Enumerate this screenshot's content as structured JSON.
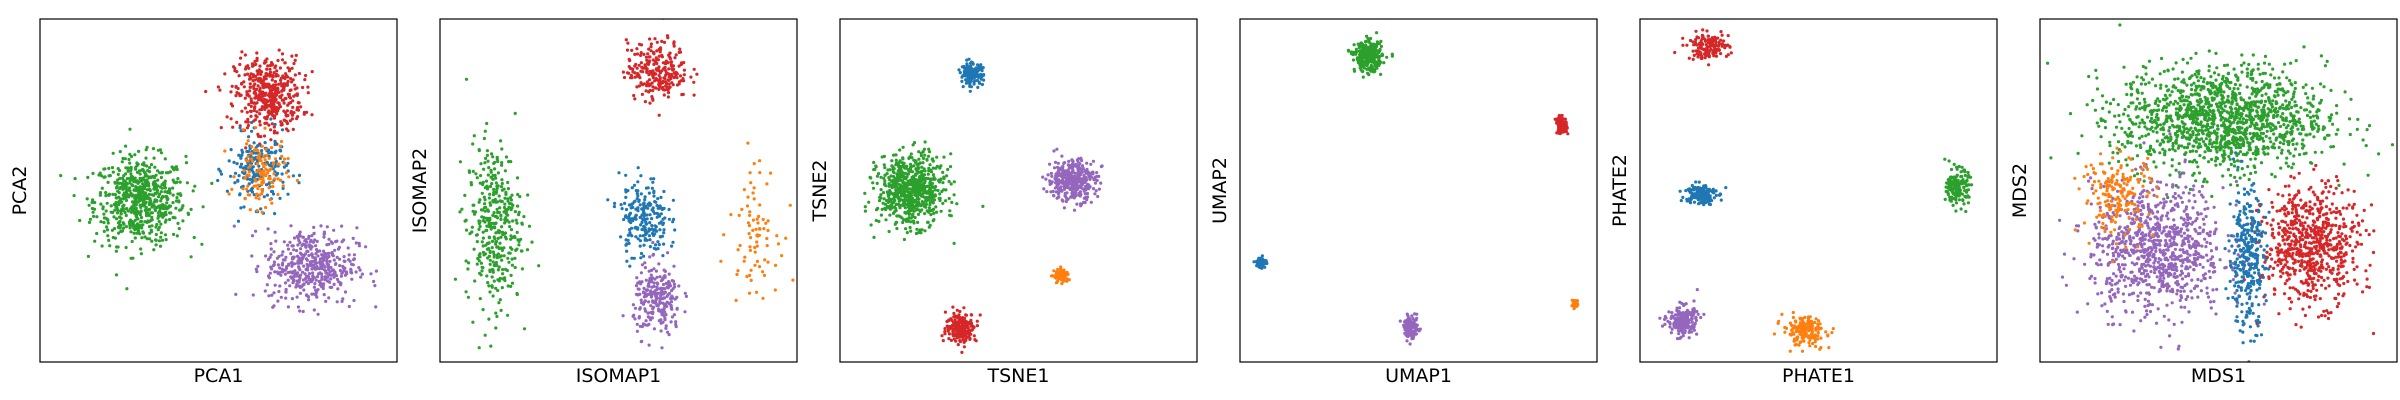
{
  "chart_data": [
    {
      "type": "scatter",
      "xlabel": "PCA1",
      "ylabel": "PCA2",
      "xlim": [
        0,
        1
      ],
      "ylim": [
        0,
        1
      ],
      "xticks": [],
      "yticks": [],
      "grid": false,
      "clusters": [
        {
          "color": "#2ca02c",
          "center": [
            0.28,
            0.47
          ],
          "spread": [
            0.075,
            0.075
          ],
          "n": 650
        },
        {
          "color": "#d62728",
          "center": [
            0.64,
            0.78
          ],
          "spread": [
            0.055,
            0.065
          ],
          "n": 450
        },
        {
          "color": "#1f77b4",
          "center": [
            0.61,
            0.56
          ],
          "spread": [
            0.05,
            0.06
          ],
          "n": 200
        },
        {
          "color": "#ff7f0e",
          "center": [
            0.62,
            0.55
          ],
          "spread": [
            0.04,
            0.06
          ],
          "n": 120
        },
        {
          "color": "#9467bd",
          "center": [
            0.76,
            0.28
          ],
          "spread": [
            0.075,
            0.065
          ],
          "n": 450
        }
      ]
    },
    {
      "type": "scatter",
      "xlabel": "ISOMAP1",
      "ylabel": "ISOMAP2",
      "xlim": [
        0,
        1
      ],
      "ylim": [
        0,
        1
      ],
      "xticks": [],
      "yticks": [],
      "grid": false,
      "clusters": [
        {
          "color": "#2ca02c",
          "center": [
            0.15,
            0.4
          ],
          "spread": [
            0.045,
            0.14
          ],
          "n": 380
        },
        {
          "color": "#d62728",
          "center": [
            0.61,
            0.85
          ],
          "spread": [
            0.05,
            0.05
          ],
          "n": 260
        },
        {
          "color": "#1f77b4",
          "center": [
            0.57,
            0.42
          ],
          "spread": [
            0.04,
            0.07
          ],
          "n": 220
        },
        {
          "color": "#9467bd",
          "center": [
            0.61,
            0.18
          ],
          "spread": [
            0.04,
            0.06
          ],
          "n": 240
        },
        {
          "color": "#ff7f0e",
          "center": [
            0.88,
            0.4
          ],
          "spread": [
            0.04,
            0.11
          ],
          "n": 80
        }
      ]
    },
    {
      "type": "scatter",
      "xlabel": "TSNE1",
      "ylabel": "TSNE2",
      "xlim": [
        0,
        1
      ],
      "ylim": [
        0,
        1
      ],
      "xticks": [],
      "yticks": [],
      "grid": false,
      "clusters": [
        {
          "color": "#2ca02c",
          "center": [
            0.2,
            0.5
          ],
          "spread": [
            0.055,
            0.06
          ],
          "n": 700
        },
        {
          "color": "#9467bd",
          "center": [
            0.65,
            0.53
          ],
          "spread": [
            0.04,
            0.035
          ],
          "n": 380
        },
        {
          "color": "#1f77b4",
          "center": [
            0.37,
            0.84
          ],
          "spread": [
            0.018,
            0.018
          ],
          "n": 150
        },
        {
          "color": "#d62728",
          "center": [
            0.34,
            0.1
          ],
          "spread": [
            0.025,
            0.025
          ],
          "n": 220
        },
        {
          "color": "#ff7f0e",
          "center": [
            0.62,
            0.25
          ],
          "spread": [
            0.012,
            0.012
          ],
          "n": 80
        }
      ]
    },
    {
      "type": "scatter",
      "xlabel": "UMAP1",
      "ylabel": "UMAP2",
      "xlim": [
        0,
        1
      ],
      "ylim": [
        0,
        1
      ],
      "xticks": [],
      "yticks": [],
      "grid": false,
      "clusters": [
        {
          "color": "#2ca02c",
          "center": [
            0.36,
            0.89
          ],
          "spread": [
            0.022,
            0.025
          ],
          "n": 330
        },
        {
          "color": "#d62728",
          "center": [
            0.9,
            0.69
          ],
          "spread": [
            0.009,
            0.014
          ],
          "n": 110
        },
        {
          "color": "#1f77b4",
          "center": [
            0.06,
            0.29
          ],
          "spread": [
            0.008,
            0.009
          ],
          "n": 70
        },
        {
          "color": "#9467bd",
          "center": [
            0.48,
            0.1
          ],
          "spread": [
            0.012,
            0.019
          ],
          "n": 120
        },
        {
          "color": "#ff7f0e",
          "center": [
            0.94,
            0.17
          ],
          "spread": [
            0.006,
            0.007
          ],
          "n": 40
        }
      ]
    },
    {
      "type": "scatter",
      "xlabel": "PHATE1",
      "ylabel": "PHATE2",
      "xlim": [
        0,
        1
      ],
      "ylim": [
        0,
        1
      ],
      "xticks": [],
      "yticks": [],
      "grid": false,
      "clusters": [
        {
          "color": "#d62728",
          "center": [
            0.19,
            0.92
          ],
          "spread": [
            0.035,
            0.022
          ],
          "n": 140
        },
        {
          "color": "#1f77b4",
          "center": [
            0.17,
            0.49
          ],
          "spread": [
            0.025,
            0.018
          ],
          "n": 170
        },
        {
          "color": "#2ca02c",
          "center": [
            0.89,
            0.51
          ],
          "spread": [
            0.018,
            0.03
          ],
          "n": 170
        },
        {
          "color": "#9467bd",
          "center": [
            0.12,
            0.12
          ],
          "spread": [
            0.025,
            0.025
          ],
          "n": 200
        },
        {
          "color": "#ff7f0e",
          "center": [
            0.46,
            0.09
          ],
          "spread": [
            0.035,
            0.025
          ],
          "n": 170
        }
      ]
    },
    {
      "type": "scatter",
      "xlabel": "MDS1",
      "ylabel": "MDS2",
      "xlim": [
        0,
        1
      ],
      "ylim": [
        0,
        1
      ],
      "xticks": [],
      "yticks": [],
      "grid": false,
      "clusters": [
        {
          "color": "#2ca02c",
          "center": [
            0.51,
            0.71
          ],
          "spread": [
            0.17,
            0.09
          ],
          "n": 1400
        },
        {
          "color": "#9467bd",
          "center": [
            0.33,
            0.33
          ],
          "spread": [
            0.11,
            0.11
          ],
          "n": 900
        },
        {
          "color": "#d62728",
          "center": [
            0.76,
            0.34
          ],
          "spread": [
            0.08,
            0.1
          ],
          "n": 700
        },
        {
          "color": "#1f77b4",
          "center": [
            0.58,
            0.3
          ],
          "spread": [
            0.03,
            0.12
          ],
          "n": 320
        },
        {
          "color": "#ff7f0e",
          "center": [
            0.22,
            0.49
          ],
          "spread": [
            0.06,
            0.07
          ],
          "n": 180
        }
      ]
    }
  ]
}
